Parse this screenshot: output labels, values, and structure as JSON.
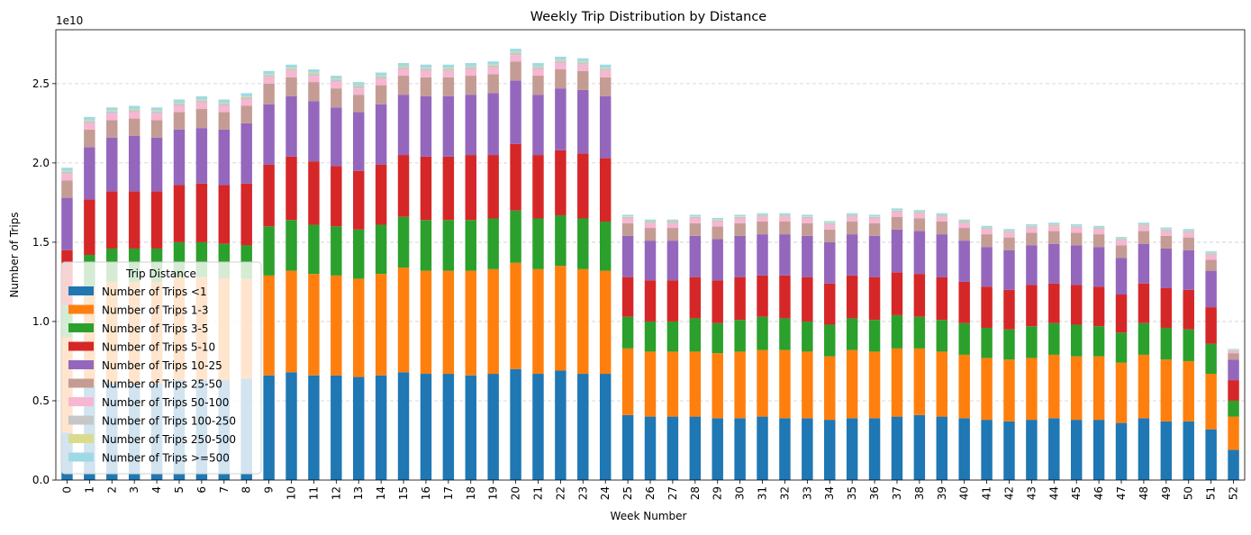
{
  "chart_data": {
    "type": "bar",
    "stacked": true,
    "title": "Weekly Trip Distribution by Distance",
    "xlabel": "Week Number",
    "ylabel": "Number of Trips",
    "y_offset_text": "1e10",
    "ylim": [
      0,
      28400000000.0
    ],
    "yticks": [
      0,
      5000000000.0,
      10000000000.0,
      15000000000.0,
      20000000000.0,
      25000000000.0
    ],
    "ytick_labels": [
      "0.0",
      "0.5",
      "1.0",
      "1.5",
      "2.0",
      "2.5"
    ],
    "grid": "horizontal dashed",
    "legend_title": "Trip Distance",
    "legend_position": "lower-left",
    "categories": [
      "0",
      "1",
      "2",
      "3",
      "4",
      "5",
      "6",
      "7",
      "8",
      "9",
      "10",
      "11",
      "12",
      "13",
      "14",
      "15",
      "16",
      "17",
      "18",
      "19",
      "20",
      "21",
      "22",
      "23",
      "24",
      "25",
      "26",
      "27",
      "28",
      "29",
      "30",
      "31",
      "32",
      "33",
      "34",
      "35",
      "36",
      "37",
      "38",
      "39",
      "40",
      "41",
      "42",
      "43",
      "44",
      "45",
      "46",
      "47",
      "48",
      "49",
      "50",
      "51",
      "52"
    ],
    "series": [
      {
        "name": "Number of Trips <1",
        "color": "#1f77b4",
        "values": [
          3000000000.0,
          6000000000.0,
          6100000000.0,
          6100000000.0,
          6100000000.0,
          6300000000.0,
          6300000000.0,
          6300000000.0,
          6400000000.0,
          6600000000.0,
          6800000000.0,
          6600000000.0,
          6600000000.0,
          6500000000.0,
          6600000000.0,
          6800000000.0,
          6700000000.0,
          6700000000.0,
          6600000000.0,
          6700000000.0,
          7000000000.0,
          6700000000.0,
          6900000000.0,
          6700000000.0,
          6700000000.0,
          4100000000.0,
          4000000000.0,
          4000000000.0,
          4000000000.0,
          3900000000.0,
          3900000000.0,
          4000000000.0,
          3900000000.0,
          3900000000.0,
          3800000000.0,
          3900000000.0,
          3900000000.0,
          4000000000.0,
          4100000000.0,
          4000000000.0,
          3900000000.0,
          3800000000.0,
          3700000000.0,
          3800000000.0,
          3900000000.0,
          3800000000.0,
          3800000000.0,
          3600000000.0,
          3900000000.0,
          3700000000.0,
          3700000000.0,
          3200000000.0,
          1900000000.0
        ]
      },
      {
        "name": "Number of Trips 1-3",
        "color": "#ff7f0e",
        "values": [
          6000000000.0,
          6200000000.0,
          6400000000.0,
          6400000000.0,
          6400000000.0,
          6500000000.0,
          6500000000.0,
          6400000000.0,
          6300000000.0,
          6300000000.0,
          6400000000.0,
          6400000000.0,
          6300000000.0,
          6200000000.0,
          6400000000.0,
          6600000000.0,
          6500000000.0,
          6500000000.0,
          6600000000.0,
          6600000000.0,
          6700000000.0,
          6600000000.0,
          6600000000.0,
          6600000000.0,
          6500000000.0,
          4200000000.0,
          4100000000.0,
          4100000000.0,
          4100000000.0,
          4100000000.0,
          4200000000.0,
          4200000000.0,
          4300000000.0,
          4200000000.0,
          4000000000.0,
          4300000000.0,
          4200000000.0,
          4300000000.0,
          4200000000.0,
          4100000000.0,
          4000000000.0,
          3900000000.0,
          3900000000.0,
          3900000000.0,
          4000000000.0,
          4000000000.0,
          4000000000.0,
          3800000000.0,
          4000000000.0,
          3900000000.0,
          3800000000.0,
          3500000000.0,
          2100000000.0
        ]
      },
      {
        "name": "Number of Trips 3-5",
        "color": "#2ca02c",
        "values": [
          2000000000.0,
          2000000000.0,
          2100000000.0,
          2100000000.0,
          2100000000.0,
          2200000000.0,
          2200000000.0,
          2200000000.0,
          2100000000.0,
          3100000000.0,
          3200000000.0,
          3100000000.0,
          3100000000.0,
          3100000000.0,
          3100000000.0,
          3200000000.0,
          3200000000.0,
          3200000000.0,
          3200000000.0,
          3200000000.0,
          3300000000.0,
          3200000000.0,
          3200000000.0,
          3200000000.0,
          3100000000.0,
          2000000000.0,
          1900000000.0,
          1900000000.0,
          2100000000.0,
          1900000000.0,
          2000000000.0,
          2100000000.0,
          2000000000.0,
          1900000000.0,
          2000000000.0,
          2000000000.0,
          2000000000.0,
          2100000000.0,
          2000000000.0,
          2000000000.0,
          2000000000.0,
          1900000000.0,
          1900000000.0,
          2000000000.0,
          2000000000.0,
          2000000000.0,
          1900000000.0,
          1900000000.0,
          2000000000.0,
          2000000000.0,
          2000000000.0,
          1900000000.0,
          1000000000.0
        ]
      },
      {
        "name": "Number of Trips 5-10",
        "color": "#d62728",
        "values": [
          3500000000.0,
          3500000000.0,
          3600000000.0,
          3600000000.0,
          3600000000.0,
          3600000000.0,
          3700000000.0,
          3700000000.0,
          3900000000.0,
          3900000000.0,
          4000000000.0,
          4000000000.0,
          3800000000.0,
          3700000000.0,
          3800000000.0,
          3900000000.0,
          4000000000.0,
          4000000000.0,
          4100000000.0,
          4000000000.0,
          4200000000.0,
          4000000000.0,
          4100000000.0,
          4100000000.0,
          4000000000.0,
          2500000000.0,
          2600000000.0,
          2600000000.0,
          2600000000.0,
          2700000000.0,
          2700000000.0,
          2600000000.0,
          2700000000.0,
          2800000000.0,
          2600000000.0,
          2700000000.0,
          2700000000.0,
          2700000000.0,
          2700000000.0,
          2700000000.0,
          2600000000.0,
          2600000000.0,
          2500000000.0,
          2600000000.0,
          2500000000.0,
          2500000000.0,
          2500000000.0,
          2400000000.0,
          2500000000.0,
          2500000000.0,
          2500000000.0,
          2300000000.0,
          1300000000.0
        ]
      },
      {
        "name": "Number of Trips 10-25",
        "color": "#9467bd",
        "values": [
          3300000000.0,
          3300000000.0,
          3400000000.0,
          3500000000.0,
          3400000000.0,
          3500000000.0,
          3500000000.0,
          3500000000.0,
          3800000000.0,
          3800000000.0,
          3800000000.0,
          3800000000.0,
          3700000000.0,
          3700000000.0,
          3800000000.0,
          3800000000.0,
          3800000000.0,
          3800000000.0,
          3800000000.0,
          3900000000.0,
          4000000000.0,
          3800000000.0,
          3900000000.0,
          4000000000.0,
          3900000000.0,
          2600000000.0,
          2500000000.0,
          2500000000.0,
          2600000000.0,
          2600000000.0,
          2600000000.0,
          2600000000.0,
          2600000000.0,
          2600000000.0,
          2600000000.0,
          2600000000.0,
          2600000000.0,
          2700000000.0,
          2700000000.0,
          2700000000.0,
          2600000000.0,
          2500000000.0,
          2500000000.0,
          2500000000.0,
          2500000000.0,
          2500000000.0,
          2500000000.0,
          2300000000.0,
          2500000000.0,
          2500000000.0,
          2500000000.0,
          2300000000.0,
          1300000000.0
        ]
      },
      {
        "name": "Number of Trips 25-50",
        "color": "#c49c94",
        "values": [
          1100000000.0,
          1100000000.0,
          1100000000.0,
          1100000000.0,
          1100000000.0,
          1100000000.0,
          1200000000.0,
          1100000000.0,
          1100000000.0,
          1300000000.0,
          1200000000.0,
          1200000000.0,
          1200000000.0,
          1100000000.0,
          1200000000.0,
          1200000000.0,
          1200000000.0,
          1200000000.0,
          1200000000.0,
          1200000000.0,
          1200000000.0,
          1200000000.0,
          1200000000.0,
          1200000000.0,
          1200000000.0,
          800000000.0,
          800000000.0,
          800000000.0,
          800000000.0,
          800000000.0,
          800000000.0,
          800000000.0,
          800000000.0,
          800000000.0,
          800000000.0,
          800000000.0,
          800000000.0,
          800000000.0,
          800000000.0,
          800000000.0,
          800000000.0,
          800000000.0,
          800000000.0,
          800000000.0,
          800000000.0,
          800000000.0,
          800000000.0,
          800000000.0,
          800000000.0,
          800000000.0,
          800000000.0,
          700000000.0,
          400000000.0
        ]
      },
      {
        "name": "Number of Trips 50-100",
        "color": "#f7b6d2",
        "values": [
          400000000.0,
          400000000.0,
          400000000.0,
          400000000.0,
          400000000.0,
          400000000.0,
          400000000.0,
          400000000.0,
          400000000.0,
          400000000.0,
          400000000.0,
          400000000.0,
          400000000.0,
          400000000.0,
          400000000.0,
          400000000.0,
          400000000.0,
          400000000.0,
          400000000.0,
          400000000.0,
          400000000.0,
          400000000.0,
          400000000.0,
          400000000.0,
          400000000.0,
          300000000.0,
          300000000.0,
          300000000.0,
          300000000.0,
          300000000.0,
          300000000.0,
          300000000.0,
          300000000.0,
          300000000.0,
          300000000.0,
          300000000.0,
          300000000.0,
          300000000.0,
          300000000.0,
          300000000.0,
          300000000.0,
          300000000.0,
          300000000.0,
          300000000.0,
          300000000.0,
          300000000.0,
          300000000.0,
          300000000.0,
          300000000.0,
          300000000.0,
          300000000.0,
          300000000.0,
          150000000.0
        ]
      },
      {
        "name": "Number of Trips 100-250",
        "color": "#c7c7c7",
        "values": [
          150000000.0,
          150000000.0,
          150000000.0,
          150000000.0,
          150000000.0,
          150000000.0,
          150000000.0,
          150000000.0,
          150000000.0,
          150000000.0,
          150000000.0,
          150000000.0,
          150000000.0,
          150000000.0,
          150000000.0,
          150000000.0,
          150000000.0,
          150000000.0,
          150000000.0,
          150000000.0,
          150000000.0,
          150000000.0,
          150000000.0,
          150000000.0,
          150000000.0,
          100000000.0,
          100000000.0,
          100000000.0,
          100000000.0,
          100000000.0,
          100000000.0,
          100000000.0,
          100000000.0,
          100000000.0,
          100000000.0,
          100000000.0,
          100000000.0,
          100000000.0,
          100000000.0,
          100000000.0,
          100000000.0,
          100000000.0,
          100000000.0,
          100000000.0,
          100000000.0,
          100000000.0,
          100000000.0,
          100000000.0,
          100000000.0,
          100000000.0,
          100000000.0,
          100000000.0,
          50000000.0
        ]
      },
      {
        "name": "Number of Trips 250-500",
        "color": "#dbdb8d",
        "values": [
          50000000.0,
          50000000.0,
          50000000.0,
          50000000.0,
          50000000.0,
          50000000.0,
          50000000.0,
          50000000.0,
          50000000.0,
          50000000.0,
          50000000.0,
          50000000.0,
          50000000.0,
          50000000.0,
          50000000.0,
          50000000.0,
          50000000.0,
          50000000.0,
          50000000.0,
          50000000.0,
          50000000.0,
          50000000.0,
          50000000.0,
          50000000.0,
          50000000.0,
          30000000.0,
          30000000.0,
          30000000.0,
          30000000.0,
          30000000.0,
          30000000.0,
          30000000.0,
          30000000.0,
          30000000.0,
          30000000.0,
          30000000.0,
          30000000.0,
          30000000.0,
          30000000.0,
          30000000.0,
          30000000.0,
          30000000.0,
          30000000.0,
          30000000.0,
          30000000.0,
          30000000.0,
          30000000.0,
          30000000.0,
          30000000.0,
          30000000.0,
          30000000.0,
          30000000.0,
          20000000.0
        ]
      },
      {
        "name": "Number of Trips >=500",
        "color": "#9edae5",
        "values": [
          200000000.0,
          200000000.0,
          200000000.0,
          200000000.0,
          200000000.0,
          200000000.0,
          200000000.0,
          200000000.0,
          200000000.0,
          200000000.0,
          200000000.0,
          200000000.0,
          200000000.0,
          200000000.0,
          200000000.0,
          200000000.0,
          200000000.0,
          200000000.0,
          200000000.0,
          200000000.0,
          200000000.0,
          200000000.0,
          200000000.0,
          200000000.0,
          200000000.0,
          100000000.0,
          100000000.0,
          100000000.0,
          100000000.0,
          100000000.0,
          100000000.0,
          100000000.0,
          100000000.0,
          100000000.0,
          100000000.0,
          100000000.0,
          100000000.0,
          100000000.0,
          100000000.0,
          100000000.0,
          100000000.0,
          100000000.0,
          100000000.0,
          100000000.0,
          100000000.0,
          100000000.0,
          100000000.0,
          100000000.0,
          100000000.0,
          100000000.0,
          100000000.0,
          100000000.0,
          50000000.0
        ]
      }
    ]
  }
}
